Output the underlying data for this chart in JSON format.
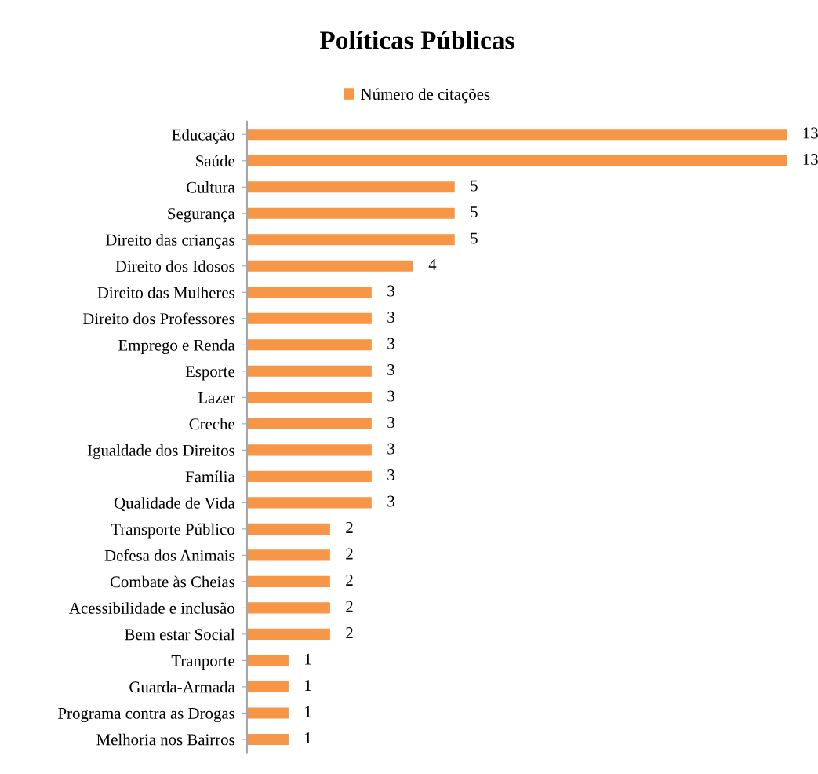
{
  "chart_data": {
    "type": "bar",
    "title": "Políticas Públicas",
    "orientation": "horizontal",
    "categories": [
      "Educação",
      "Saúde",
      "Cultura",
      "Segurança",
      "Direito das crianças",
      "Direito dos Idosos",
      "Direito das Mulheres",
      "Direito dos Professores",
      "Emprego e Renda",
      "Esporte",
      "Lazer",
      "Creche",
      "Igualdade dos Direitos",
      "Família",
      "Qualidade de Vida",
      "Transporte Público",
      "Defesa dos Animais",
      "Combate às Cheias",
      "Acessibilidade e inclusão",
      "Bem estar Social",
      "Tranporte",
      "Guarda-Armada",
      "Programa contra as Drogas",
      "Melhoria nos Bairros"
    ],
    "series": [
      {
        "name": "Número de citações",
        "color": "#f79646",
        "values": [
          13,
          13,
          5,
          5,
          5,
          4,
          3,
          3,
          3,
          3,
          3,
          3,
          3,
          3,
          3,
          2,
          2,
          2,
          2,
          2,
          1,
          1,
          1,
          1
        ]
      }
    ],
    "data_labels": true,
    "legend": "top",
    "grid": false,
    "tick_labels": "y"
  }
}
